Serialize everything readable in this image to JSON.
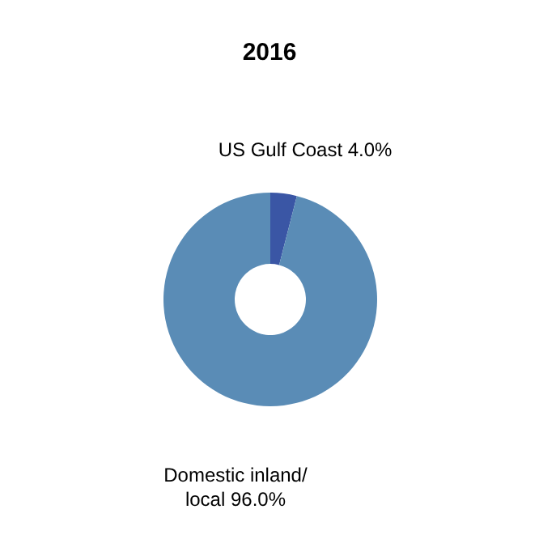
{
  "chart_data": {
    "type": "donut",
    "title": "2016",
    "categories": [
      "US Gulf Coast",
      "Domestic inland/ local"
    ],
    "values": [
      4.0,
      96.0
    ],
    "value_labels": [
      "4.0%",
      "96.0%"
    ],
    "colors": [
      "#3a56a5",
      "#5a8cb6"
    ]
  }
}
